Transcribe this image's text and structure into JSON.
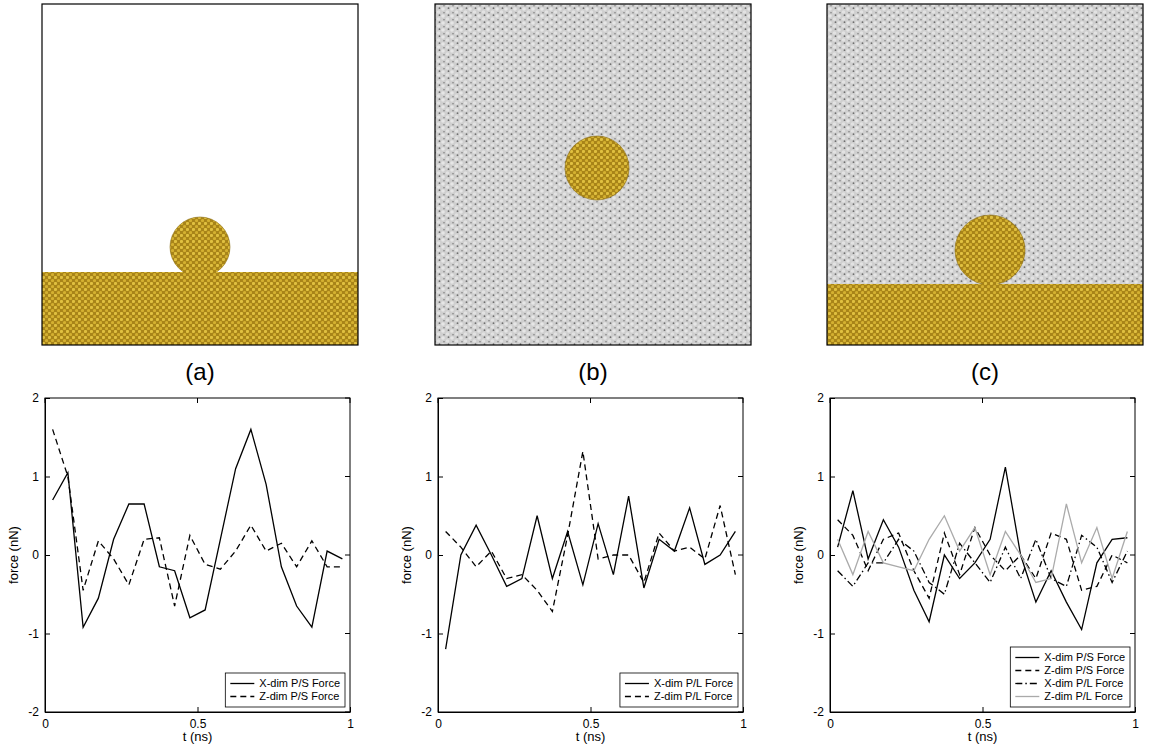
{
  "chart_data": [
    {
      "type": "line",
      "title": "(a)",
      "xlabel": "t (ns)",
      "ylabel": "force (nN)",
      "x": [
        0.025,
        0.075,
        0.125,
        0.175,
        0.225,
        0.275,
        0.325,
        0.375,
        0.425,
        0.475,
        0.525,
        0.575,
        0.625,
        0.675,
        0.725,
        0.775,
        0.825,
        0.875,
        0.925,
        0.975
      ],
      "series": [
        {
          "name": "X-dim P/S Force",
          "color": "#000000",
          "line_style": "solid",
          "values": [
            0.7,
            1.05,
            -0.92,
            -0.55,
            0.2,
            0.65,
            0.65,
            -0.15,
            -0.2,
            -0.8,
            -0.7,
            0.2,
            1.1,
            1.6,
            0.9,
            -0.15,
            -0.65,
            -0.92,
            0.05,
            -0.05
          ]
        },
        {
          "name": "Z-dim P/S Force",
          "color": "#000000",
          "line_style": "dashed",
          "values": [
            1.6,
            1.0,
            -0.45,
            0.18,
            -0.05,
            -0.38,
            0.2,
            0.22,
            -0.65,
            0.25,
            -0.12,
            -0.18,
            0.05,
            0.38,
            0.05,
            0.15,
            -0.15,
            0.18,
            -0.15,
            -0.15
          ]
        }
      ],
      "xlim": [
        0,
        1
      ],
      "xticks": [
        0,
        0.5,
        1
      ],
      "ylim": [
        -2,
        2
      ],
      "yticks": [
        -2,
        -1,
        0,
        1,
        2
      ],
      "legend": "lower right"
    },
    {
      "type": "line",
      "title": "(b)",
      "xlabel": "t (ns)",
      "ylabel": "force (nN)",
      "x": [
        0.025,
        0.075,
        0.125,
        0.175,
        0.225,
        0.275,
        0.325,
        0.375,
        0.425,
        0.475,
        0.525,
        0.575,
        0.625,
        0.675,
        0.725,
        0.775,
        0.825,
        0.875,
        0.925,
        0.975
      ],
      "series": [
        {
          "name": "X-dim P/L Force",
          "color": "#000000",
          "line_style": "solid",
          "values": [
            -1.2,
            0.0,
            0.38,
            0.0,
            -0.4,
            -0.3,
            0.5,
            -0.3,
            0.3,
            -0.38,
            0.4,
            -0.25,
            0.75,
            -0.42,
            0.2,
            0.05,
            0.6,
            -0.12,
            0.0,
            0.3
          ]
        },
        {
          "name": "Z-dim P/L Force",
          "color": "#000000",
          "line_style": "dashed",
          "values": [
            0.3,
            0.1,
            -0.15,
            0.05,
            -0.3,
            -0.25,
            -0.45,
            -0.72,
            0.25,
            1.32,
            -0.05,
            0.0,
            0.0,
            -0.35,
            0.28,
            0.05,
            0.1,
            -0.05,
            0.63,
            -0.25
          ]
        }
      ],
      "xlim": [
        0,
        1
      ],
      "xticks": [
        0,
        0.5,
        1
      ],
      "ylim": [
        -2,
        2
      ],
      "yticks": [
        -2,
        -1,
        0,
        1,
        2
      ],
      "legend": "lower right"
    },
    {
      "type": "line",
      "title": "(c)",
      "xlabel": "t (ns)",
      "ylabel": "force (nN)",
      "x": [
        0.025,
        0.075,
        0.125,
        0.175,
        0.225,
        0.275,
        0.325,
        0.375,
        0.425,
        0.475,
        0.525,
        0.575,
        0.625,
        0.675,
        0.725,
        0.775,
        0.825,
        0.875,
        0.925,
        0.975
      ],
      "series": [
        {
          "name": "X-dim P/S Force",
          "color": "#000000",
          "line_style": "solid",
          "values": [
            0.1,
            0.82,
            -0.05,
            0.45,
            0.1,
            -0.45,
            -0.85,
            0.0,
            -0.3,
            -0.1,
            0.2,
            1.12,
            0.0,
            -0.6,
            -0.2,
            -0.6,
            -0.95,
            -0.1,
            0.2,
            0.22
          ]
        },
        {
          "name": "Z-dim P/S Force",
          "color": "#000000",
          "line_style": "dashed",
          "values": [
            0.45,
            0.25,
            -0.2,
            0.2,
            0.28,
            -0.2,
            -0.55,
            0.28,
            -0.25,
            0.35,
            0.0,
            -0.2,
            0.0,
            -0.3,
            0.28,
            0.2,
            -0.45,
            -0.4,
            0.0,
            -0.1
          ]
        },
        {
          "name": "X-dim P/L Force",
          "color": "#000000",
          "line_style": "dashdot",
          "values": [
            -0.2,
            -0.4,
            -0.1,
            -0.1,
            0.2,
            0.05,
            -0.35,
            -0.5,
            0.15,
            -0.1,
            -0.35,
            0.1,
            -0.3,
            0.2,
            -0.3,
            -0.4,
            0.25,
            0.1,
            -0.35,
            0.05
          ]
        },
        {
          "name": "Z-dim P/L Force",
          "color": "#aaaaaa",
          "line_style": "solid",
          "values": [
            0.2,
            -0.25,
            0.3,
            -0.1,
            -0.15,
            -0.2,
            0.2,
            0.5,
            0.05,
            0.35,
            -0.25,
            0.3,
            0.0,
            -0.35,
            -0.3,
            0.65,
            -0.1,
            0.35,
            -0.3,
            0.3
          ]
        }
      ],
      "xlim": [
        0,
        1
      ],
      "xticks": [
        0,
        0.5,
        1
      ],
      "ylim": [
        -2,
        2
      ],
      "yticks": [
        -2,
        -1,
        0,
        1,
        2
      ],
      "legend": "lower right"
    }
  ]
}
